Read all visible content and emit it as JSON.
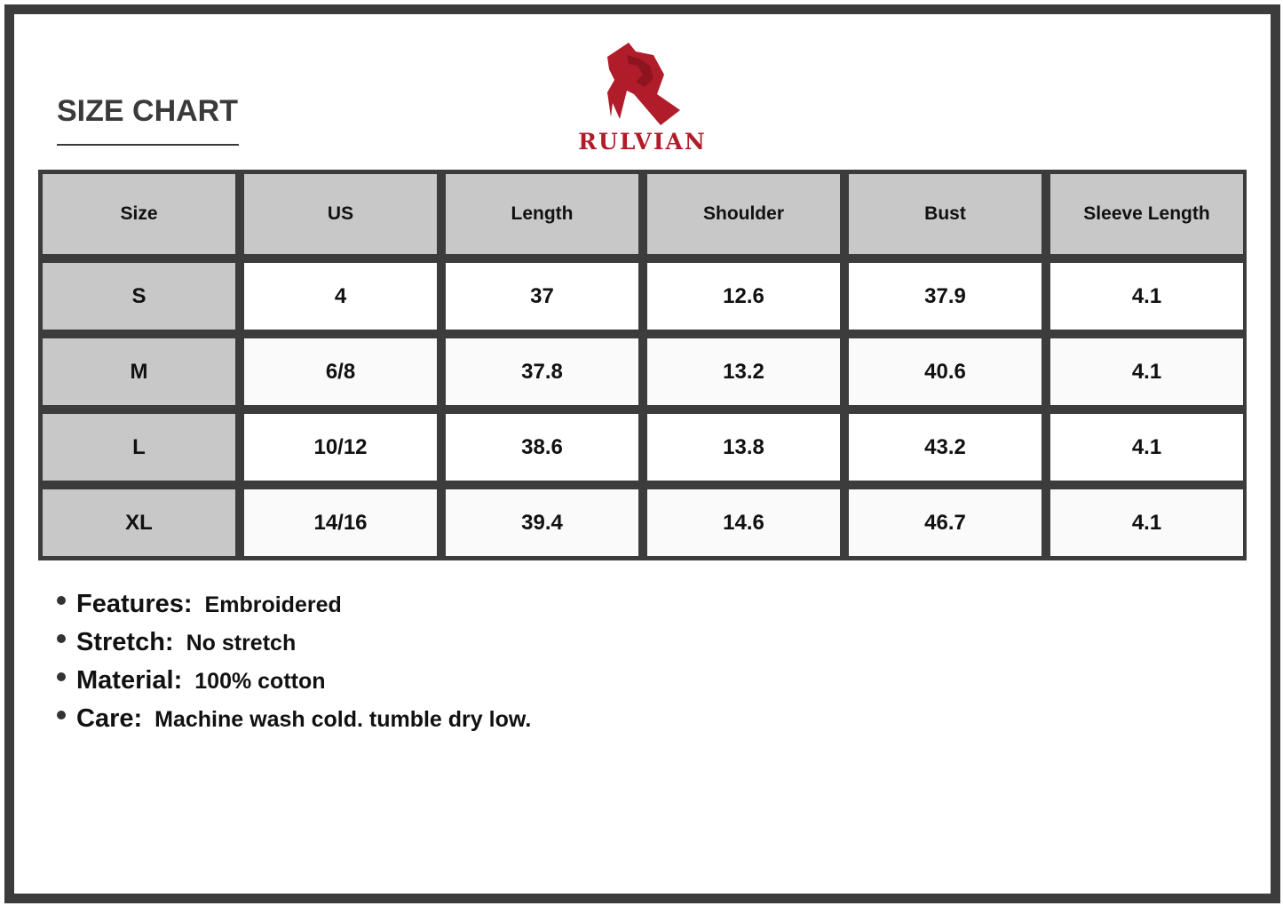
{
  "title": "SIZE CHART",
  "brand": {
    "name": "RULVIAN",
    "color": "#b01c2a"
  },
  "table": {
    "headers": [
      "Size",
      "US",
      "Length",
      "Shoulder",
      "Bust",
      "Sleeve Length"
    ],
    "rows": [
      [
        "S",
        "4",
        "37",
        "12.6",
        "37.9",
        "4.1"
      ],
      [
        "M",
        "6/8",
        "37.8",
        "13.2",
        "40.6",
        "4.1"
      ],
      [
        "L",
        "10/12",
        "38.6",
        "13.8",
        "43.2",
        "4.1"
      ],
      [
        "XL",
        "14/16",
        "39.4",
        "14.6",
        "46.7",
        "4.1"
      ]
    ]
  },
  "features": [
    {
      "label": "Features:",
      "value": "Embroidered"
    },
    {
      "label": "Stretch:",
      "value": "No stretch"
    },
    {
      "label": "Material:",
      "value": "100% cotton"
    },
    {
      "label": "Care:",
      "value": "Machine wash cold. tumble dry low."
    }
  ]
}
